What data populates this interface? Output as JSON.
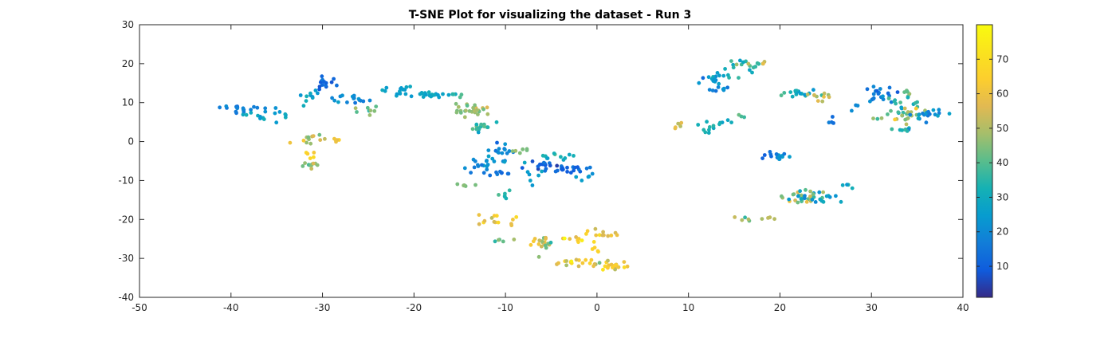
{
  "chart_data": {
    "type": "scatter",
    "title": "T-SNE Plot for visualizing the dataset - Run 3",
    "xlabel": "",
    "ylabel": "",
    "xlim": [
      -50,
      40
    ],
    "ylim": [
      -40,
      30
    ],
    "x_ticks": [
      "-50",
      "-40",
      "-30",
      "-20",
      "-10",
      "0",
      "10",
      "20",
      "30",
      "40"
    ],
    "y_ticks": [
      "-40",
      "-30",
      "-20",
      "-10",
      "0",
      "10",
      "20",
      "30"
    ],
    "grid": false,
    "colormap": "parula",
    "color_range": [
      1,
      80
    ],
    "colorbar_ticks": [
      "10",
      "20",
      "30",
      "40",
      "50",
      "60",
      "70"
    ],
    "clusters": [
      {
        "cx": -39,
        "cy": 8.5,
        "sx": 1.8,
        "sy": 0.6,
        "n": 18,
        "c": 18,
        "cs": 4
      },
      {
        "cx": -36,
        "cy": 7.0,
        "sx": 1.8,
        "sy": 1.4,
        "n": 16,
        "c": 27,
        "cs": 5
      },
      {
        "cx": -32,
        "cy": 11.5,
        "sx": 1.3,
        "sy": 1.5,
        "n": 10,
        "c": 26,
        "cs": 6
      },
      {
        "cx": -29.5,
        "cy": 14.5,
        "sx": 1.2,
        "sy": 1.2,
        "n": 14,
        "c": 11,
        "cs": 4
      },
      {
        "cx": -27,
        "cy": 11.0,
        "sx": 1.5,
        "sy": 1.0,
        "n": 16,
        "c": 20,
        "cs": 5
      },
      {
        "cx": -25,
        "cy": 8.0,
        "sx": 1.2,
        "sy": 0.7,
        "n": 8,
        "c": 42,
        "cs": 8
      },
      {
        "cx": -22,
        "cy": 13.0,
        "sx": 1.4,
        "sy": 1.0,
        "n": 14,
        "c": 27,
        "cs": 5
      },
      {
        "cx": -18,
        "cy": 12.0,
        "sx": 1.4,
        "sy": 0.6,
        "n": 20,
        "c": 28,
        "cs": 4
      },
      {
        "cx": -15.5,
        "cy": 12.0,
        "sx": 0.8,
        "sy": 0.4,
        "n": 5,
        "c": 38,
        "cs": 4
      },
      {
        "cx": -13.5,
        "cy": 8.0,
        "sx": 1.2,
        "sy": 1.0,
        "n": 28,
        "c": 46,
        "cs": 6
      },
      {
        "cx": -12.5,
        "cy": 3.8,
        "sx": 1.0,
        "sy": 0.9,
        "n": 16,
        "c": 37,
        "cs": 6
      },
      {
        "cx": -31,
        "cy": 0.5,
        "sx": 1.0,
        "sy": 0.7,
        "n": 12,
        "c": 50,
        "cs": 12
      },
      {
        "cx": -28.5,
        "cy": 0.3,
        "sx": 0.6,
        "sy": 0.4,
        "n": 5,
        "c": 62,
        "cs": 8
      },
      {
        "cx": -31,
        "cy": -6.0,
        "sx": 0.7,
        "sy": 0.5,
        "n": 10,
        "c": 45,
        "cs": 8
      },
      {
        "cx": -31.3,
        "cy": -3.0,
        "sx": 0.3,
        "sy": 1.5,
        "n": 5,
        "c": 65,
        "cs": 5
      },
      {
        "cx": -10.5,
        "cy": -3.0,
        "sx": 1.0,
        "sy": 1.6,
        "n": 18,
        "c": 20,
        "cs": 6
      },
      {
        "cx": -13,
        "cy": -6.0,
        "sx": 1.2,
        "sy": 1.8,
        "n": 16,
        "c": 20,
        "cs": 6
      },
      {
        "cx": -10.5,
        "cy": -8.0,
        "sx": 1.2,
        "sy": 0.5,
        "n": 8,
        "c": 14,
        "cs": 4
      },
      {
        "cx": -8.5,
        "cy": -2.0,
        "sx": 1.0,
        "sy": 0.6,
        "n": 6,
        "c": 45,
        "cs": 5
      },
      {
        "cx": -15,
        "cy": -11.0,
        "sx": 0.7,
        "sy": 0.5,
        "n": 5,
        "c": 45,
        "cs": 4
      },
      {
        "cx": -10,
        "cy": -13.5,
        "sx": 0.6,
        "sy": 1.0,
        "n": 6,
        "c": 33,
        "cs": 5
      },
      {
        "cx": -7,
        "cy": -10.0,
        "sx": 0.8,
        "sy": 2.0,
        "n": 6,
        "c": 25,
        "cs": 6
      },
      {
        "cx": -6.5,
        "cy": -6.5,
        "sx": 1.5,
        "sy": 1.0,
        "n": 14,
        "c": 10,
        "cs": 5
      },
      {
        "cx": -3.5,
        "cy": -7.0,
        "sx": 1.5,
        "sy": 0.6,
        "n": 20,
        "c": 12,
        "cs": 5
      },
      {
        "cx": -4.5,
        "cy": -3.5,
        "sx": 2.0,
        "sy": 1.0,
        "n": 12,
        "c": 32,
        "cs": 6
      },
      {
        "cx": -1,
        "cy": -10.0,
        "sx": 0.6,
        "sy": 1.2,
        "n": 5,
        "c": 25,
        "cs": 4
      },
      {
        "cx": -11,
        "cy": -19.5,
        "sx": 2.2,
        "sy": 1.2,
        "n": 14,
        "c": 60,
        "cs": 10
      },
      {
        "cx": -10.5,
        "cy": -25.0,
        "sx": 0.8,
        "sy": 0.5,
        "n": 5,
        "c": 45,
        "cs": 8
      },
      {
        "cx": -6.0,
        "cy": -26.0,
        "sx": 0.8,
        "sy": 1.2,
        "n": 18,
        "c": 52,
        "cs": 12
      },
      {
        "cx": -3.0,
        "cy": -25.0,
        "sx": 1.5,
        "sy": 0.6,
        "n": 10,
        "c": 62,
        "cs": 10
      },
      {
        "cx": -3.0,
        "cy": -31.0,
        "sx": 2.2,
        "sy": 0.6,
        "n": 18,
        "c": 60,
        "cs": 12
      },
      {
        "cx": 1.5,
        "cy": -32.0,
        "sx": 1.2,
        "sy": 1.0,
        "n": 22,
        "c": 58,
        "cs": 12
      },
      {
        "cx": 1.0,
        "cy": -24.0,
        "sx": 1.6,
        "sy": 1.2,
        "n": 12,
        "c": 57,
        "cs": 14
      },
      {
        "cx": 0.0,
        "cy": -28.0,
        "sx": 0.6,
        "sy": 0.6,
        "n": 4,
        "c": 65,
        "cs": 5
      },
      {
        "cx": 9.0,
        "cy": 4.0,
        "sx": 0.7,
        "sy": 0.8,
        "n": 6,
        "c": 55,
        "cs": 8
      },
      {
        "cx": 12.0,
        "cy": 3.5,
        "sx": 0.8,
        "sy": 1.0,
        "n": 8,
        "c": 33,
        "cs": 5
      },
      {
        "cx": 14.0,
        "cy": 5.0,
        "sx": 1.2,
        "sy": 0.8,
        "n": 6,
        "c": 30,
        "cs": 5
      },
      {
        "cx": 16.0,
        "cy": 6.5,
        "sx": 0.5,
        "sy": 0.4,
        "n": 3,
        "c": 40,
        "cs": 4
      },
      {
        "cx": 12.5,
        "cy": 16.5,
        "sx": 1.5,
        "sy": 1.2,
        "n": 16,
        "c": 26,
        "cs": 8
      },
      {
        "cx": 15.5,
        "cy": 19.0,
        "sx": 1.8,
        "sy": 1.2,
        "n": 14,
        "c": 35,
        "cs": 10
      },
      {
        "cx": 13.8,
        "cy": 14.0,
        "sx": 0.8,
        "sy": 0.8,
        "n": 8,
        "c": 18,
        "cs": 4
      },
      {
        "cx": 17.0,
        "cy": 20.5,
        "sx": 1.6,
        "sy": 0.5,
        "n": 8,
        "c": 45,
        "cs": 12
      },
      {
        "cx": 18.5,
        "cy": -3.5,
        "sx": 0.5,
        "sy": 1.2,
        "n": 5,
        "c": 12,
        "cs": 4
      },
      {
        "cx": 20.0,
        "cy": -4.0,
        "sx": 0.6,
        "sy": 1.0,
        "n": 14,
        "c": 20,
        "cs": 8
      },
      {
        "cx": 16.5,
        "cy": -20.0,
        "sx": 1.0,
        "sy": 0.5,
        "n": 6,
        "c": 42,
        "cs": 10
      },
      {
        "cx": 19.0,
        "cy": -20.0,
        "sx": 0.5,
        "sy": 0.3,
        "n": 3,
        "c": 50,
        "cs": 8
      },
      {
        "cx": 22.5,
        "cy": -14.0,
        "sx": 1.6,
        "sy": 1.2,
        "n": 30,
        "c": 40,
        "cs": 16
      },
      {
        "cx": 24.5,
        "cy": -15.0,
        "sx": 1.5,
        "sy": 1.0,
        "n": 14,
        "c": 25,
        "cs": 8
      },
      {
        "cx": 27,
        "cy": -11.0,
        "sx": 0.6,
        "sy": 0.6,
        "n": 4,
        "c": 30,
        "cs": 5
      },
      {
        "cx": 22.0,
        "cy": 12.5,
        "sx": 1.6,
        "sy": 0.9,
        "n": 18,
        "c": 30,
        "cs": 10
      },
      {
        "cx": 24.0,
        "cy": 12.0,
        "sx": 1.0,
        "sy": 1.0,
        "n": 10,
        "c": 50,
        "cs": 8
      },
      {
        "cx": 25.5,
        "cy": 5.0,
        "sx": 0.4,
        "sy": 0.8,
        "n": 4,
        "c": 15,
        "cs": 4
      },
      {
        "cx": 28.0,
        "cy": 9.0,
        "sx": 0.4,
        "sy": 1.0,
        "n": 3,
        "c": 20,
        "cs": 4
      },
      {
        "cx": 31.0,
        "cy": 12.0,
        "sx": 1.2,
        "sy": 1.8,
        "n": 20,
        "c": 18,
        "cs": 6
      },
      {
        "cx": 33.5,
        "cy": 11.0,
        "sx": 1.2,
        "sy": 2.2,
        "n": 20,
        "c": 35,
        "cs": 10
      },
      {
        "cx": 33.5,
        "cy": 6.5,
        "sx": 1.2,
        "sy": 1.6,
        "n": 18,
        "c": 48,
        "cs": 12
      },
      {
        "cx": 33.8,
        "cy": 3.0,
        "sx": 0.7,
        "sy": 0.6,
        "n": 8,
        "c": 30,
        "cs": 8
      },
      {
        "cx": 36.5,
        "cy": 7.0,
        "sx": 1.5,
        "sy": 0.9,
        "n": 20,
        "c": 20,
        "cs": 7
      },
      {
        "cx": 30.5,
        "cy": 6.0,
        "sx": 0.5,
        "sy": 0.5,
        "n": 3,
        "c": 45,
        "cs": 5
      }
    ]
  }
}
